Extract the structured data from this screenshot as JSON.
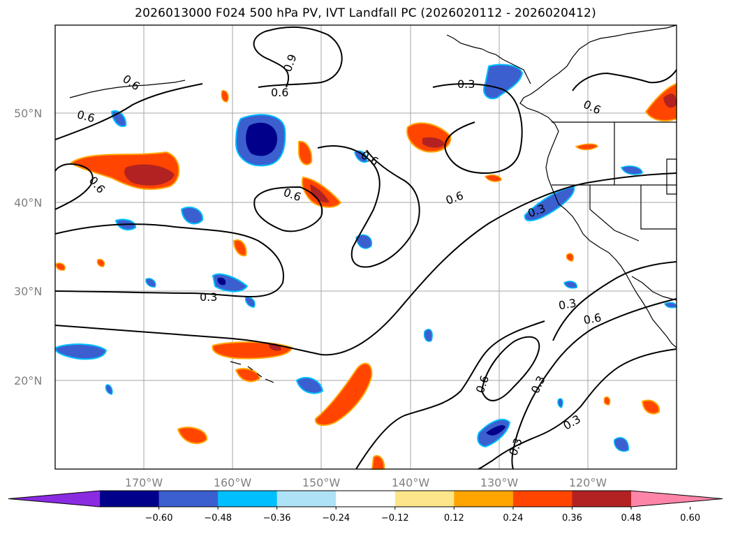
{
  "title": "2026013000 F024 500 hPa PV, IVT Landfall PC (2026020112 - 2026020412)",
  "map": {
    "lat_ticks": [
      "50°N",
      "40°N",
      "30°N",
      "20°N"
    ],
    "lon_ticks": [
      "170°W",
      "160°W",
      "150°W",
      "140°W",
      "130°W",
      "120°W"
    ],
    "gridline_color": "#a6a6a6",
    "contour_labels": [
      "0.6",
      "0.9",
      "0.6",
      "0.3",
      "0.6",
      "0.6",
      "0.6",
      "0.6",
      "0.6",
      "0.6",
      "0.3",
      "0.3",
      "0.3",
      "0.6",
      "0.6",
      "0.3",
      "0.3",
      "0.3"
    ]
  },
  "colorbar": {
    "ticks": [
      "−0.60",
      "−0.48",
      "−0.36",
      "−0.24",
      "−0.12",
      "0.12",
      "0.24",
      "0.36",
      "0.48",
      "0.60"
    ],
    "colors": [
      "#8a2be2",
      "#00008b",
      "#3b5fcf",
      "#00bfff",
      "#aee3f7",
      "#ffffff",
      "#fde68a",
      "#ffa500",
      "#ff4500",
      "#b22222",
      "#ff85a8"
    ]
  }
}
